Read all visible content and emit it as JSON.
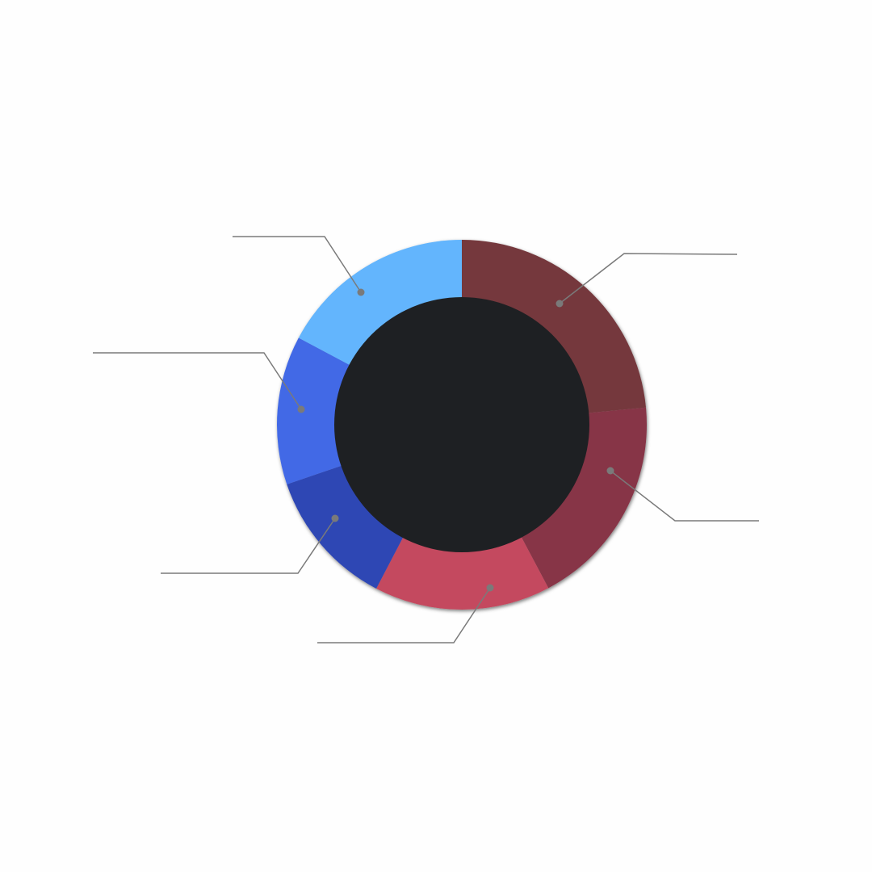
{
  "chart_data": {
    "type": "donut",
    "categories": [
      null,
      null,
      null,
      null,
      null,
      null
    ],
    "values": [
      23.5,
      18.7,
      15.4,
      12.1,
      13.0,
      17.2
    ],
    "colors": [
      "#74393d",
      "#873447",
      "#c44a5e",
      "#2f46b4",
      "#4269e6",
      "#63b5fd"
    ],
    "hole_color": "#1e2023"
  }
}
